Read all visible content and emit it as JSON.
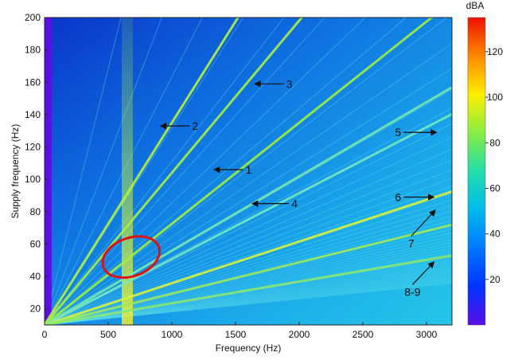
{
  "chart_data": {
    "type": "heatmap",
    "title": "",
    "xlabel": "Frequency (Hz)",
    "ylabel": "Supply frequency (Hz)",
    "xlim": [
      0,
      3200
    ],
    "ylim": [
      10,
      200
    ],
    "x_ticks": [
      0,
      500,
      1000,
      1500,
      2000,
      2500,
      3000
    ],
    "y_ticks": [
      20,
      40,
      60,
      80,
      100,
      120,
      140,
      160,
      180,
      200
    ],
    "colorbar": {
      "label": "dBA",
      "range": [
        0,
        135
      ],
      "ticks": [
        20,
        40,
        60,
        80,
        100,
        120
      ],
      "colormap": [
        "#5a0fe6",
        "#0033ff",
        "#0077ff",
        "#00bbee",
        "#22ddaa",
        "#88ee44",
        "#ffee00",
        "#ff8800",
        "#ee1100"
      ]
    },
    "lines": [
      {
        "label": "1",
        "slope_hz_per_hz": 15.2
      },
      {
        "label": "2",
        "slope_hz_per_hz": 7.6
      },
      {
        "label": "3",
        "slope_hz_per_hz": 10.1
      },
      {
        "label": "4",
        "slope_hz_per_hz": 20.4
      },
      {
        "label": "5",
        "slope_hz_per_hz": 22.8
      },
      {
        "label": "6",
        "slope_hz_per_hz": 34.6
      },
      {
        "label": "7",
        "slope_hz_per_hz": 44.5
      },
      {
        "label": "8-9",
        "slope_hz_per_hz": 60.5
      }
    ],
    "vertical_band_hz": 650,
    "highlight": {
      "x": 680,
      "y": 52,
      "shape": "ellipse",
      "color": "#e01010"
    },
    "annotations": [
      {
        "text": "1",
        "x_tail": 1560,
        "x_head": 1330,
        "y": 106
      },
      {
        "text": "2",
        "x_tail": 1140,
        "x_head": 910,
        "y": 133
      },
      {
        "text": "3",
        "x_tail": 1880,
        "x_head": 1650,
        "y": 159
      },
      {
        "text": "4",
        "x_tail": 1920,
        "x_head": 1630,
        "y": 85
      },
      {
        "text": "5",
        "x_tail": 2820,
        "x_head": 3080,
        "y": 129
      },
      {
        "text": "6",
        "x_tail": 2820,
        "x_head": 3060,
        "y": 89
      },
      {
        "text": "7",
        "x_tail": 2880,
        "x_head": 3070,
        "y": 81,
        "text_y": 57
      },
      {
        "text": "8-9",
        "x_tail": 2890,
        "x_head": 3060,
        "y": 49,
        "text_y": 27
      }
    ]
  }
}
